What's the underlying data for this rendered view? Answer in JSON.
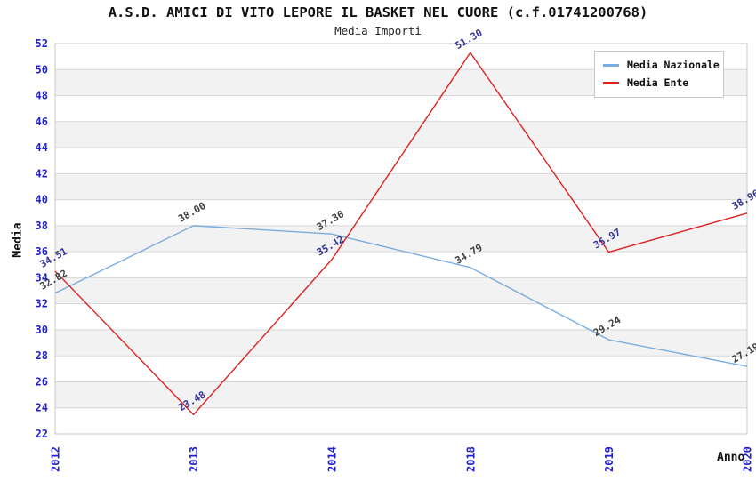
{
  "header": {
    "title": "A.S.D. AMICI DI VITO LEPORE IL BASKET NEL CUORE (c.f.01741200768)",
    "subtitle": "Media Importi"
  },
  "legend": {
    "position": "top-right",
    "items": [
      {
        "label": "Media Nazionale",
        "color": "#79ade1"
      },
      {
        "label": "Media Ente",
        "color": "#dd2222"
      }
    ]
  },
  "axes": {
    "y_title": "Media",
    "x_title": "Anno",
    "tick_color": "#2222cc"
  },
  "colors": {
    "gridline": "#d6d6d6",
    "plot_border": "#c8c8c8",
    "band_even": "#ffffff",
    "band_odd": "#f2f2f2"
  },
  "chart_data": {
    "type": "line",
    "title": "A.S.D. AMICI DI VITO LEPORE IL BASKET NEL CUORE (c.f.01741200768)",
    "subtitle": "Media Importi",
    "xlabel": "Anno",
    "ylabel": "Media",
    "categories": [
      "2012",
      "2013",
      "2014",
      "2018",
      "2019",
      "2020"
    ],
    "series": [
      {
        "name": "Media Nazionale",
        "color": "#79ade1",
        "label_color": "#404040",
        "values": [
          32.82,
          38.0,
          37.36,
          34.79,
          29.24,
          27.19
        ]
      },
      {
        "name": "Media Ente",
        "color": "#dd2222",
        "label_color": "#333399",
        "values": [
          34.51,
          23.48,
          35.42,
          51.3,
          35.97,
          38.96
        ]
      }
    ],
    "ylim": [
      22,
      52
    ],
    "ytick_step": 2,
    "grid": true,
    "banded_background": true,
    "legend_position": "top-right",
    "point_label_decimals": 2
  }
}
